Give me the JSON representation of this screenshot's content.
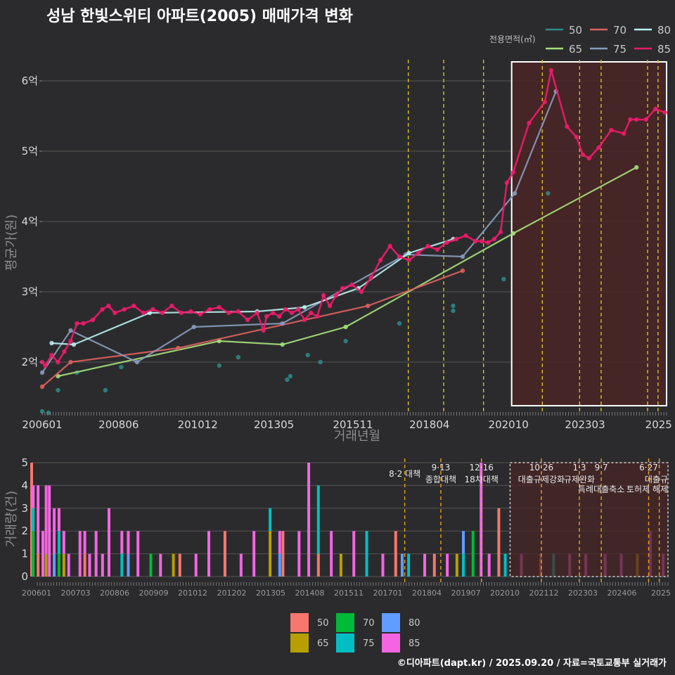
{
  "title": "성남 한빛스위티 아파트(2005) 매매가격 변화",
  "footer": "©디아파트(dapt.kr) / 2025.09.20 / 자료=국토교통부 실거래가",
  "colors": {
    "background": "#2b2b2d",
    "grid": "#555555",
    "vline": "#d9c21a",
    "vline_bottom": "#e8a21a",
    "highlight_fill": "#4a2526",
    "highlight_stroke": "#ffffff"
  },
  "chart_data": [
    {
      "type": "line",
      "title": "성남 한빛스위티 아파트(2005) 매매가격 변화",
      "xlabel": "거래년월",
      "ylabel": "평균가(원)",
      "xlim": [
        2006.0,
        2025.75
      ],
      "ylim": [
        1.3,
        6.3
      ],
      "x_tick_labels": [
        "200601",
        "200806",
        "201012",
        "201305",
        "201511",
        "201804",
        "202010",
        "202303",
        "2025"
      ],
      "x_tick_values": [
        2006.0,
        2008.42,
        2010.92,
        2013.33,
        2015.83,
        2018.25,
        2020.75,
        2023.17,
        2025.5
      ],
      "y_tick_labels": [
        "2억",
        "3억",
        "4억",
        "5억",
        "6억"
      ],
      "y_tick_values": [
        2,
        3,
        4,
        5,
        6
      ],
      "legend_title": "전용면적(㎡)",
      "legend_position": "top-right",
      "series": [
        {
          "name": "50",
          "color": "#2e8b8b",
          "connected": false,
          "x": [
            2006.0,
            2006.2,
            2006.5,
            2007.1,
            2008.0,
            2008.5,
            2011.6,
            2012.2,
            2013.75,
            2013.85,
            2014.4,
            2014.8,
            2015.6,
            2017.3,
            2019.0,
            2019.0,
            2020.6,
            2022.0
          ],
          "y": [
            1.3,
            1.28,
            1.6,
            1.85,
            1.6,
            1.93,
            1.95,
            2.07,
            1.75,
            1.8,
            2.1,
            2.0,
            2.3,
            2.55,
            2.8,
            2.73,
            3.18,
            4.4
          ]
        },
        {
          "name": "65",
          "color": "#a6e07a",
          "connected": true,
          "x": [
            2006.5,
            2011.6,
            2013.6,
            2015.6,
            2020.9,
            2024.8
          ],
          "y": [
            1.8,
            2.3,
            2.25,
            2.5,
            3.83,
            4.77
          ]
        },
        {
          "name": "70",
          "color": "#e06060",
          "connected": true,
          "x": [
            2006.0,
            2006.9,
            2010.3,
            2016.3,
            2019.3
          ],
          "y": [
            1.65,
            2.0,
            2.2,
            2.8,
            3.3
          ]
        },
        {
          "name": "75",
          "color": "#8a9cbf",
          "connected": true,
          "x": [
            2006.0,
            2006.9,
            2009.0,
            2010.8,
            2013.6,
            2017.5,
            2019.3,
            2020.95,
            2022.25
          ],
          "y": [
            1.85,
            2.45,
            2.0,
            2.5,
            2.55,
            3.53,
            3.5,
            4.4,
            5.85
          ]
        },
        {
          "name": "80",
          "color": "#b8f0f0",
          "connected": true,
          "x": [
            2006.3,
            2007.0,
            2009.4,
            2012.8,
            2014.3,
            2016.0,
            2017.6,
            2019.0
          ],
          "y": [
            2.27,
            2.25,
            2.7,
            2.72,
            2.78,
            3.05,
            3.55,
            3.75
          ]
        },
        {
          "name": "85",
          "color": "#ee1b6a",
          "connected": true,
          "x": [
            2006.0,
            2006.1,
            2006.3,
            2006.5,
            2006.7,
            2006.9,
            2007.1,
            2007.3,
            2007.6,
            2007.9,
            2008.1,
            2008.3,
            2008.6,
            2008.9,
            2009.2,
            2009.5,
            2009.8,
            2010.1,
            2010.4,
            2010.7,
            2011.0,
            2011.3,
            2011.6,
            2011.9,
            2012.2,
            2012.5,
            2012.8,
            2013.0,
            2013.1,
            2013.3,
            2013.5,
            2013.7,
            2013.9,
            2014.1,
            2014.3,
            2014.5,
            2014.7,
            2014.9,
            2015.1,
            2015.3,
            2015.5,
            2015.8,
            2016.1,
            2016.4,
            2016.7,
            2017.0,
            2017.3,
            2017.6,
            2017.9,
            2018.2,
            2018.5,
            2018.8,
            2019.1,
            2019.4,
            2019.7,
            2019.9,
            2020.1,
            2020.3,
            2020.5,
            2020.7,
            2020.9,
            2021.4,
            2021.9,
            2022.1,
            2022.6,
            2022.9,
            2023.1,
            2023.3,
            2023.6,
            2024.0,
            2024.4,
            2024.6,
            2024.8,
            2025.1,
            2025.4,
            2025.7
          ],
          "y": [
            2.0,
            1.95,
            2.1,
            2.0,
            2.15,
            2.3,
            2.55,
            2.55,
            2.6,
            2.75,
            2.8,
            2.7,
            2.75,
            2.8,
            2.7,
            2.75,
            2.7,
            2.8,
            2.7,
            2.72,
            2.68,
            2.75,
            2.78,
            2.7,
            2.72,
            2.6,
            2.7,
            2.45,
            2.65,
            2.7,
            2.65,
            2.75,
            2.7,
            2.75,
            2.6,
            2.7,
            2.65,
            2.95,
            2.8,
            2.95,
            3.05,
            3.1,
            3.0,
            3.2,
            3.45,
            3.65,
            3.5,
            3.45,
            3.55,
            3.65,
            3.6,
            3.7,
            3.75,
            3.8,
            3.72,
            3.72,
            3.7,
            3.75,
            3.85,
            4.55,
            4.7,
            5.4,
            5.7,
            6.15,
            5.35,
            5.2,
            4.95,
            4.9,
            5.05,
            5.3,
            5.25,
            5.45,
            5.45,
            5.45,
            5.6,
            5.55
          ]
        }
      ],
      "event_lines_x": [
        2017.58,
        2018.7,
        2019.96,
        2021.82,
        2023.0,
        2023.68,
        2025.15,
        2025.48
      ],
      "highlight_range": {
        "x": [
          2020.85,
          2025.75
        ],
        "y": [
          1.38,
          6.27
        ]
      }
    },
    {
      "type": "bar",
      "title": "",
      "xlabel": "",
      "ylabel": "거래량(건)",
      "ylim": [
        0,
        5
      ],
      "y_tick_labels": [
        "0",
        "1",
        "2",
        "3",
        "4",
        "5"
      ],
      "x_tick_labels": [
        "200601",
        "200703",
        "200806",
        "200909",
        "201012",
        "201202",
        "201305",
        "201408",
        "201511",
        "201701",
        "201804",
        "201907",
        "202010",
        "202112",
        "202303",
        "202406",
        "2025"
      ],
      "legend_position": "bottom",
      "legend": [
        {
          "name": "50",
          "color": "#f8766d"
        },
        {
          "name": "65",
          "color": "#b79f00"
        },
        {
          "name": "70",
          "color": "#00ba38"
        },
        {
          "name": "75",
          "color": "#00bfc4"
        },
        {
          "name": "80",
          "color": "#619cff"
        },
        {
          "name": "85",
          "color": "#f564e3"
        }
      ],
      "annotations": [
        {
          "x": 2017.58,
          "label": "8·2 대책"
        },
        {
          "x": 2018.7,
          "label": "9·13"
        },
        {
          "x": 2018.7,
          "label": "종합대책"
        },
        {
          "x": 2019.96,
          "label": "12·16"
        },
        {
          "x": 2019.96,
          "label": "18차대책"
        },
        {
          "x": 2021.82,
          "label": "10·26"
        },
        {
          "x": 2021.82,
          "label": "대출규제강화"
        },
        {
          "x": 2023.0,
          "label": "1·3"
        },
        {
          "x": 2023.0,
          "label": "규제완화"
        },
        {
          "x": 2023.68,
          "label": "9·7"
        },
        {
          "x": 2023.68,
          "label": "특례대출축소"
        },
        {
          "x": 2025.15,
          "label": "6·27"
        },
        {
          "x": 2025.15,
          "label": "대출규"
        },
        {
          "x": 2025.48,
          "label": "토허제 해제"
        }
      ],
      "bars": [
        {
          "x": 2006.0,
          "stack": [
            5,
            0,
            0,
            0,
            0,
            0
          ]
        },
        {
          "x": 2006.05,
          "stack": [
            0,
            0,
            2,
            1,
            0,
            1
          ]
        },
        {
          "x": 2006.2,
          "stack": [
            1,
            0,
            0,
            0,
            0,
            3
          ]
        },
        {
          "x": 2006.35,
          "stack": [
            0,
            0,
            0,
            0,
            0,
            2
          ]
        },
        {
          "x": 2006.45,
          "stack": [
            0,
            1,
            0,
            0,
            0,
            3
          ]
        },
        {
          "x": 2006.55,
          "stack": [
            0,
            0,
            0,
            0,
            0,
            4
          ]
        },
        {
          "x": 2006.7,
          "stack": [
            0,
            0,
            0,
            0,
            1,
            2
          ]
        },
        {
          "x": 2006.85,
          "stack": [
            0,
            0,
            1,
            1,
            0,
            1
          ]
        },
        {
          "x": 2007.0,
          "stack": [
            0,
            1,
            0,
            0,
            0,
            1
          ]
        },
        {
          "x": 2007.15,
          "stack": [
            0,
            0,
            0,
            0,
            0,
            1
          ]
        },
        {
          "x": 2007.5,
          "stack": [
            0,
            0,
            0,
            0,
            0,
            2
          ]
        },
        {
          "x": 2007.65,
          "stack": [
            1,
            0,
            0,
            0,
            0,
            1
          ]
        },
        {
          "x": 2007.8,
          "stack": [
            0,
            0,
            0,
            0,
            0,
            1
          ]
        },
        {
          "x": 2008.0,
          "stack": [
            0,
            0,
            0,
            0,
            0,
            2
          ]
        },
        {
          "x": 2008.2,
          "stack": [
            0,
            0,
            0,
            0,
            0,
            1
          ]
        },
        {
          "x": 2008.4,
          "stack": [
            0,
            0,
            0,
            0,
            0,
            3
          ]
        },
        {
          "x": 2008.8,
          "stack": [
            0,
            0,
            0,
            1,
            0,
            1
          ]
        },
        {
          "x": 2009.0,
          "stack": [
            0,
            0,
            0,
            0,
            1,
            1
          ]
        },
        {
          "x": 2009.3,
          "stack": [
            0,
            0,
            0,
            0,
            0,
            2
          ]
        },
        {
          "x": 2009.7,
          "stack": [
            0,
            0,
            1,
            0,
            0,
            0
          ]
        },
        {
          "x": 2010.0,
          "stack": [
            0,
            0,
            0,
            0,
            0,
            1
          ]
        },
        {
          "x": 2010.4,
          "stack": [
            0,
            1,
            0,
            0,
            0,
            0
          ]
        },
        {
          "x": 2010.6,
          "stack": [
            1,
            0,
            0,
            0,
            0,
            0
          ]
        },
        {
          "x": 2011.1,
          "stack": [
            0,
            0,
            0,
            0,
            0,
            1
          ]
        },
        {
          "x": 2011.5,
          "stack": [
            0,
            0,
            0,
            0,
            0,
            2
          ]
        },
        {
          "x": 2012.0,
          "stack": [
            2,
            0,
            0,
            0,
            0,
            0
          ]
        },
        {
          "x": 2012.5,
          "stack": [
            0,
            0,
            0,
            0,
            0,
            1
          ]
        },
        {
          "x": 2012.9,
          "stack": [
            0,
            0,
            0,
            0,
            0,
            2
          ]
        },
        {
          "x": 2013.4,
          "stack": [
            0,
            2,
            0,
            1,
            0,
            0
          ]
        },
        {
          "x": 2013.7,
          "stack": [
            0,
            0,
            0,
            0,
            1,
            1
          ]
        },
        {
          "x": 2013.8,
          "stack": [
            2,
            0,
            0,
            0,
            0,
            0
          ]
        },
        {
          "x": 2014.3,
          "stack": [
            0,
            0,
            0,
            0,
            0,
            2
          ]
        },
        {
          "x": 2014.6,
          "stack": [
            0,
            0,
            0,
            0,
            0,
            5
          ]
        },
        {
          "x": 2014.9,
          "stack": [
            1,
            0,
            0,
            3,
            0,
            0
          ]
        },
        {
          "x": 2015.3,
          "stack": [
            0,
            0,
            0,
            0,
            0,
            2
          ]
        },
        {
          "x": 2015.6,
          "stack": [
            0,
            1,
            0,
            0,
            0,
            0
          ]
        },
        {
          "x": 2016.0,
          "stack": [
            0,
            0,
            0,
            0,
            0,
            2
          ]
        },
        {
          "x": 2016.4,
          "stack": [
            0,
            0,
            0,
            2,
            0,
            0
          ]
        },
        {
          "x": 2016.9,
          "stack": [
            0,
            0,
            0,
            0,
            0,
            1
          ]
        },
        {
          "x": 2017.3,
          "stack": [
            2,
            0,
            0,
            0,
            0,
            0
          ]
        },
        {
          "x": 2017.5,
          "stack": [
            0,
            0,
            0,
            0,
            1,
            0
          ]
        },
        {
          "x": 2017.7,
          "stack": [
            0,
            0,
            0,
            1,
            0,
            0
          ]
        },
        {
          "x": 2018.2,
          "stack": [
            0,
            0,
            0,
            0,
            0,
            1
          ]
        },
        {
          "x": 2018.5,
          "stack": [
            1,
            0,
            0,
            0,
            0,
            0
          ]
        },
        {
          "x": 2018.9,
          "stack": [
            0,
            0,
            0,
            0,
            0,
            1
          ]
        },
        {
          "x": 2019.2,
          "stack": [
            0,
            1,
            0,
            0,
            0,
            0
          ]
        },
        {
          "x": 2019.4,
          "stack": [
            0,
            0,
            0,
            1,
            1,
            0
          ]
        },
        {
          "x": 2019.7,
          "stack": [
            0,
            0,
            2,
            0,
            0,
            0
          ]
        },
        {
          "x": 2019.95,
          "stack": [
            0,
            0,
            0,
            0,
            0,
            5
          ]
        },
        {
          "x": 2020.2,
          "stack": [
            0,
            0,
            0,
            0,
            0,
            1
          ]
        },
        {
          "x": 2020.5,
          "stack": [
            3,
            0,
            0,
            0,
            0,
            0
          ]
        },
        {
          "x": 2020.7,
          "stack": [
            0,
            0,
            0,
            1,
            0,
            0
          ]
        },
        {
          "x": 2021.2,
          "stack": [
            0,
            0,
            0,
            0,
            0,
            1
          ]
        },
        {
          "x": 2021.8,
          "stack": [
            1,
            0,
            0,
            0,
            0,
            0
          ]
        },
        {
          "x": 2022.2,
          "stack": [
            0,
            0,
            0,
            1,
            0,
            0
          ]
        },
        {
          "x": 2022.7,
          "stack": [
            0,
            0,
            0,
            0,
            0,
            1
          ]
        },
        {
          "x": 2023.2,
          "stack": [
            0,
            0,
            0,
            0,
            0,
            1
          ]
        },
        {
          "x": 2023.8,
          "stack": [
            0,
            0,
            0,
            0,
            0,
            1
          ]
        },
        {
          "x": 2024.3,
          "stack": [
            0,
            0,
            0,
            0,
            0,
            1
          ]
        },
        {
          "x": 2024.8,
          "stack": [
            0,
            1,
            0,
            0,
            0,
            0
          ]
        },
        {
          "x": 2025.2,
          "stack": [
            0,
            0,
            0,
            0,
            0,
            2
          ]
        },
        {
          "x": 2025.6,
          "stack": [
            0,
            0,
            0,
            0,
            0,
            1
          ]
        }
      ],
      "highlight_range": {
        "x": [
          2020.85,
          2025.75
        ]
      }
    }
  ]
}
